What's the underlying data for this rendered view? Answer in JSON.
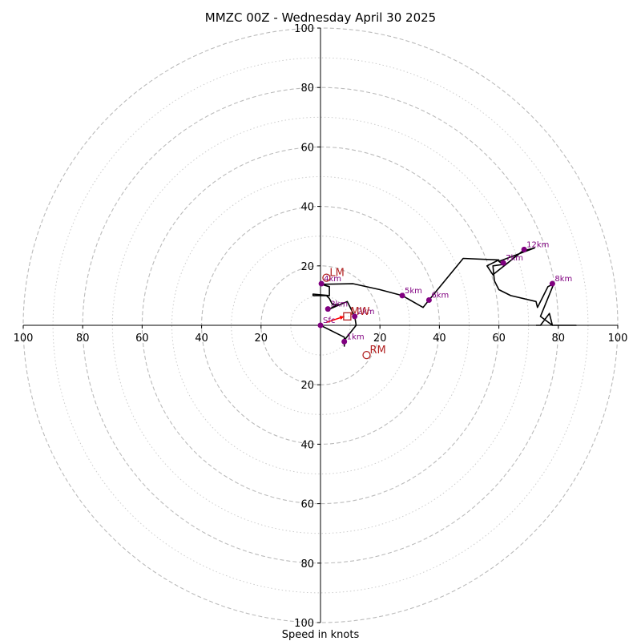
{
  "chart_data": {
    "type": "hodograph",
    "title": "MMZC 00Z - Wednesday April 30 2025",
    "xlabel": "Speed in knots",
    "range": 100,
    "major_rings": [
      20,
      40,
      60,
      80,
      100
    ],
    "minor_rings": [
      10,
      30,
      50,
      70,
      90
    ],
    "tick_labels": {
      "left": [
        "100",
        "80",
        "60",
        "40",
        "20"
      ],
      "right": [
        "20",
        "40",
        "60",
        "80",
        "100"
      ],
      "top": [
        "20",
        "40",
        "60",
        "80",
        "100"
      ],
      "bottom": [
        "20",
        "40",
        "60",
        "80",
        "100"
      ]
    },
    "colors": {
      "trace": "#000000",
      "height_marker": "#800080",
      "storm_motion": "#b22222",
      "shear_vector": "#ff0000",
      "ring": "#bbbbbb"
    },
    "trace": [
      [
        0,
        0
      ],
      [
        8,
        -4
      ],
      [
        8,
        -7
      ],
      [
        8,
        -5
      ],
      [
        12,
        0
      ],
      [
        11.5,
        3
      ],
      [
        9,
        8
      ],
      [
        2,
        5
      ],
      [
        6,
        7
      ],
      [
        4,
        7
      ],
      [
        3,
        9
      ],
      [
        2,
        10
      ],
      [
        -2.5,
        10
      ],
      [
        -2.5,
        10.5
      ],
      [
        3,
        10
      ],
      [
        3,
        13
      ],
      [
        0.3,
        13.8
      ],
      [
        11,
        14
      ],
      [
        20,
        12
      ],
      [
        27.5,
        10
      ],
      [
        34.5,
        6
      ],
      [
        36.5,
        8.5
      ],
      [
        48,
        22.5
      ],
      [
        60,
        22
      ],
      [
        56,
        20
      ],
      [
        58,
        17
      ],
      [
        68,
        25
      ],
      [
        72,
        26
      ],
      [
        60,
        21.5
      ],
      [
        61.5,
        20.5
      ],
      [
        58,
        20
      ],
      [
        58.5,
        15
      ],
      [
        60,
        12
      ],
      [
        64,
        10
      ],
      [
        72.5,
        8
      ],
      [
        73,
        6
      ],
      [
        75,
        10
      ],
      [
        76.5,
        13
      ],
      [
        78.5,
        14
      ],
      [
        74,
        3
      ],
      [
        78,
        0
      ],
      [
        86,
        0
      ],
      [
        78,
        0
      ],
      [
        77,
        4
      ],
      [
        74,
        0
      ],
      [
        72.5,
        0
      ]
    ],
    "height_markers": [
      {
        "label": "Sfc",
        "u": 0,
        "v": 0
      },
      {
        "label": "1km",
        "u": 8,
        "v": -5.5
      },
      {
        "label": "2km",
        "u": 11.5,
        "v": 3
      },
      {
        "label": "3km",
        "u": 2.5,
        "v": 5.5
      },
      {
        "label": "4km",
        "u": 0.3,
        "v": 14
      },
      {
        "label": "5km",
        "u": 27.5,
        "v": 10
      },
      {
        "label": "6km",
        "u": 36.5,
        "v": 8.5
      },
      {
        "label": "7km",
        "u": 61.5,
        "v": 21
      },
      {
        "label": "8km",
        "u": 78,
        "v": 14
      },
      {
        "label": "12km",
        "u": 68.5,
        "v": 25.5
      }
    ],
    "storm_motion": [
      {
        "label": "LM",
        "u": 2,
        "v": 16,
        "marker": "circle"
      },
      {
        "label": "RM",
        "u": 15.5,
        "v": -10,
        "marker": "circle"
      },
      {
        "label": "MW",
        "u": 9,
        "v": 3,
        "marker": "square"
      }
    ],
    "shear_vector": {
      "from": [
        2,
        1
      ],
      "to": [
        8,
        3
      ]
    }
  }
}
